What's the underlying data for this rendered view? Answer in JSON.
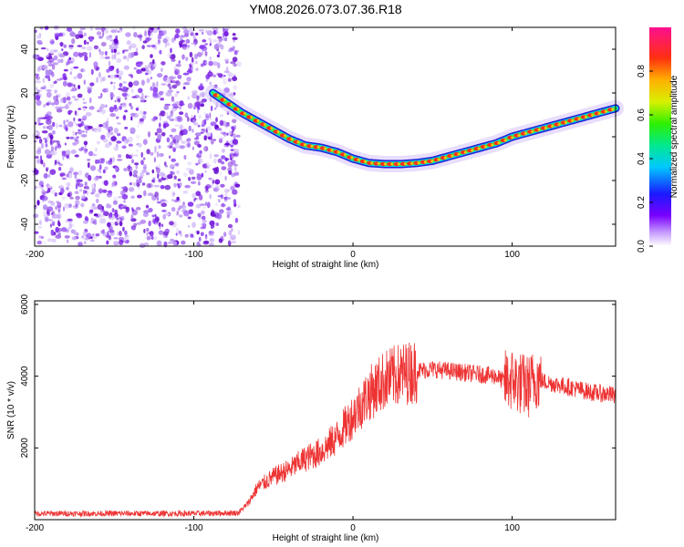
{
  "chart_data": [
    {
      "type": "heatmap",
      "title": "YM08.2026.073.07.36.R18",
      "xlabel": "Height of straight line (km)",
      "ylabel": "Frequency (Hz)",
      "xlim": [
        -200,
        165
      ],
      "ylim": [
        -50,
        50
      ],
      "xticks": [
        -200,
        -100,
        0,
        100
      ],
      "yticks": [
        -40,
        -20,
        0,
        20,
        40
      ],
      "noise_region_x": [
        -200,
        -75
      ],
      "ridge": {
        "x": [
          -88,
          -80,
          -70,
          -60,
          -50,
          -40,
          -30,
          -20,
          -10,
          0,
          10,
          20,
          30,
          40,
          50,
          60,
          70,
          80,
          90,
          100,
          110,
          120,
          130,
          140,
          150,
          160,
          165
        ],
        "y": [
          20,
          16,
          11,
          7,
          3,
          -1,
          -4,
          -5,
          -7,
          -10,
          -12,
          -12.5,
          -12.5,
          -12,
          -11,
          -9,
          -7,
          -5,
          -3,
          0,
          2,
          4,
          6,
          8,
          10,
          12,
          13
        ]
      },
      "colorbar": {
        "label": "Normalized spectral amplitude",
        "range": [
          0,
          1
        ],
        "ticks": [
          "0.0",
          "0.2",
          "0.4",
          "0.6",
          "0.8"
        ]
      }
    },
    {
      "type": "line",
      "title": "",
      "xlabel": "Height of straight line (km)",
      "ylabel": "SNR (10 * v/v)",
      "xlim": [
        -200,
        165
      ],
      "ylim": [
        0,
        6100
      ],
      "xticks": [
        -200,
        -100,
        0,
        100
      ],
      "yticks": [
        2000,
        4000,
        6000
      ],
      "color": "#ee3333",
      "series": [
        {
          "name": "SNR",
          "x": [
            -200,
            -150,
            -100,
            -72,
            -66,
            -60,
            -50,
            -40,
            -30,
            -20,
            -10,
            0,
            10,
            20,
            30,
            40,
            50,
            60,
            70,
            80,
            90,
            95,
            100,
            105,
            110,
            115,
            120,
            130,
            140,
            150,
            160,
            165
          ],
          "y": [
            170,
            170,
            170,
            190,
            450,
            900,
            1200,
            1400,
            1700,
            1900,
            2300,
            2900,
            3500,
            3900,
            4050,
            4150,
            4200,
            4150,
            4100,
            4050,
            4000,
            3850,
            3900,
            3800,
            3700,
            3950,
            3850,
            3750,
            3650,
            3550,
            3500,
            3450
          ]
        }
      ]
    }
  ]
}
